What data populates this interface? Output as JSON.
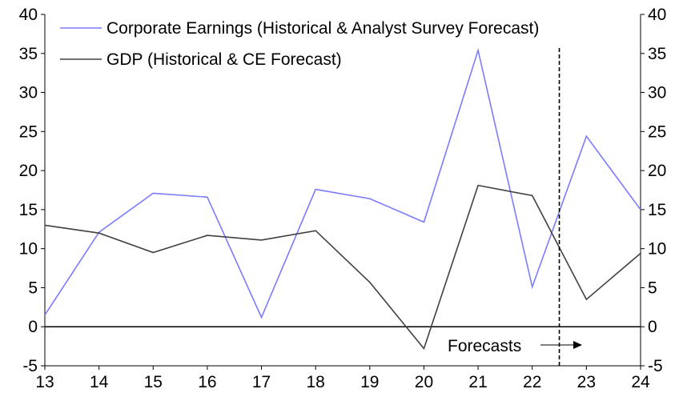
{
  "chart_data": {
    "type": "line",
    "title": "",
    "xlabel": "",
    "ylabel": "",
    "x": [
      "13",
      "14",
      "15",
      "16",
      "17",
      "18",
      "19",
      "20",
      "21",
      "22",
      "23",
      "24"
    ],
    "ylim": [
      -5,
      40
    ],
    "yticks": [
      -5,
      0,
      5,
      10,
      15,
      20,
      25,
      30,
      35,
      40
    ],
    "grid": false,
    "legend_placement": "top-left",
    "series": [
      {
        "name": "Corporate Earnings (Historical & Analyst Survey Forecast)",
        "color": "#7b7bff",
        "values": [
          1.5,
          12.1,
          17.1,
          16.6,
          1.2,
          17.6,
          16.4,
          13.4,
          35.4,
          5.1,
          24.4,
          15.0
        ]
      },
      {
        "name": "GDP (Historical & CE Forecast)",
        "color": "#404040",
        "values": [
          13.0,
          12.0,
          9.5,
          11.7,
          11.1,
          12.3,
          5.7,
          -2.8,
          18.1,
          16.8,
          3.5,
          9.4
        ]
      }
    ],
    "forecast_marker": {
      "x": 22.5,
      "label": "Forecasts"
    }
  }
}
